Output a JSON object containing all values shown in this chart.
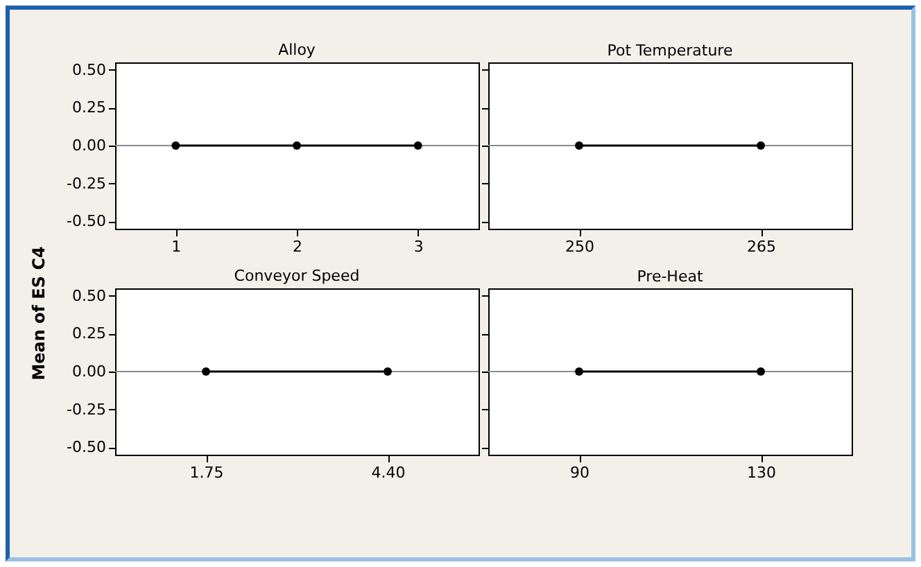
{
  "chart_data": [
    {
      "type": "line",
      "title": "Alloy",
      "ylabel": "Mean of ES C4",
      "categories": [
        "1",
        "2",
        "3"
      ],
      "series": [
        {
          "color": "#000000",
          "values": [
            0,
            0,
            0
          ]
        }
      ],
      "ylim": [
        -0.55,
        0.55
      ],
      "yticks": [
        {
          "value": -0.5,
          "label": "-0.50"
        },
        {
          "value": -0.25,
          "label": "-0.25"
        },
        {
          "value": 0,
          "label": "0.00"
        },
        {
          "value": 0.25,
          "label": "0.25"
        },
        {
          "value": 0.5,
          "label": "0.50"
        }
      ],
      "ref_lines": [
        {
          "axis": "y",
          "value": 0,
          "color": "#8c8c8c"
        }
      ],
      "marker": "circle",
      "grid": false,
      "legend": false
    },
    {
      "type": "line",
      "title": "Pot Temperature",
      "categories": [
        "250",
        "265"
      ],
      "series": [
        {
          "color": "#000000",
          "values": [
            0,
            0
          ]
        }
      ],
      "ylim": [
        -0.55,
        0.55
      ],
      "yticks": [
        -0.5,
        -0.25,
        0,
        0.25,
        0.5
      ],
      "ref_lines": [
        {
          "axis": "y",
          "value": 0,
          "color": "#8c8c8c"
        }
      ],
      "marker": "circle",
      "grid": false,
      "legend": false,
      "tick_labels": "x"
    },
    {
      "type": "line",
      "title": "Conveyor Speed",
      "categories": [
        "1.75",
        "4.40"
      ],
      "series": [
        {
          "color": "#000000",
          "values": [
            0,
            0
          ]
        }
      ],
      "ylim": [
        -0.55,
        0.55
      ],
      "yticks": [
        {
          "value": -0.5,
          "label": "-0.50"
        },
        {
          "value": -0.25,
          "label": "-0.25"
        },
        {
          "value": 0,
          "label": "0.00"
        },
        {
          "value": 0.25,
          "label": "0.25"
        },
        {
          "value": 0.5,
          "label": "0.50"
        }
      ],
      "ref_lines": [
        {
          "axis": "y",
          "value": 0,
          "color": "#8c8c8c"
        }
      ],
      "marker": "circle",
      "grid": false,
      "legend": false
    },
    {
      "type": "line",
      "title": "Pre-Heat",
      "categories": [
        "90",
        "130"
      ],
      "series": [
        {
          "color": "#000000",
          "values": [
            0,
            0
          ]
        }
      ],
      "ylim": [
        -0.55,
        0.55
      ],
      "yticks": [
        -0.5,
        -0.25,
        0,
        0.25,
        0.5
      ],
      "ref_lines": [
        {
          "axis": "y",
          "value": 0,
          "color": "#8c8c8c"
        }
      ],
      "marker": "circle",
      "grid": false,
      "legend": false,
      "tick_labels": "x"
    }
  ]
}
